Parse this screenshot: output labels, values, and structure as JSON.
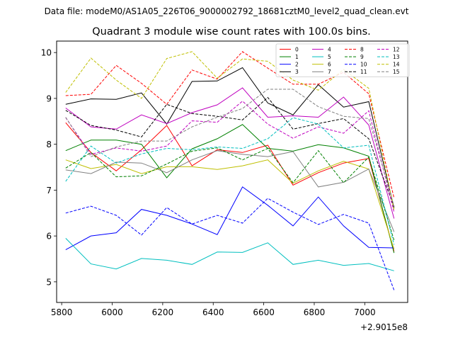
{
  "chart_data": {
    "type": "line",
    "suptitle": "Data file: modeM0/AS1A05_226T06_9000002792_18681cztM0_level2_quad_clean.evt",
    "title": "Quadrant 3 module wise count rates with 100.0s bins.",
    "xlabel": "",
    "ylabel": "",
    "x_offset_label": "+2.9015e8",
    "x": [
      5816,
      5916,
      6016,
      6116,
      6216,
      6316,
      6416,
      6516,
      6616,
      6716,
      6816,
      6916,
      7016,
      7116
    ],
    "xlim": [
      5780,
      7170
    ],
    "ylim": [
      4.55,
      10.25
    ],
    "x_ticks": [
      5800,
      6000,
      6200,
      6400,
      6600,
      6800,
      7000
    ],
    "x_tick_labels": [
      "5800",
      "6000",
      "6200",
      "6400",
      "6600",
      "6800",
      "7000"
    ],
    "y_ticks": [
      5,
      6,
      7,
      8,
      9,
      10
    ],
    "y_tick_labels": [
      "5",
      "6",
      "7",
      "8",
      "9",
      "10"
    ],
    "grid": false,
    "legend_position": "top-right",
    "legend_columns": 4,
    "series": [
      {
        "name": "0",
        "color": "#ff0000",
        "style": "solid",
        "values": [
          8.47,
          7.82,
          7.42,
          7.88,
          8.41,
          7.53,
          7.88,
          7.82,
          7.98,
          7.11,
          7.38,
          7.59,
          7.69,
          5.66
        ]
      },
      {
        "name": "1",
        "color": "#008000",
        "style": "solid",
        "values": [
          7.86,
          8.09,
          8.09,
          8.0,
          7.27,
          7.9,
          8.12,
          8.43,
          7.91,
          7.85,
          7.99,
          7.92,
          7.74,
          5.63
        ]
      },
      {
        "name": "2",
        "color": "#0000ff",
        "style": "solid",
        "values": [
          5.7,
          6.0,
          6.07,
          6.58,
          6.45,
          6.26,
          6.03,
          7.07,
          6.67,
          6.22,
          6.85,
          6.22,
          5.75,
          5.74
        ]
      },
      {
        "name": "3",
        "color": "#000000",
        "style": "solid",
        "values": [
          8.87,
          8.99,
          8.98,
          9.12,
          8.44,
          9.37,
          9.38,
          9.67,
          8.9,
          8.64,
          9.3,
          8.81,
          8.93,
          6.61
        ]
      },
      {
        "name": "4",
        "color": "#bf00bf",
        "style": "solid",
        "values": [
          8.79,
          8.38,
          8.33,
          8.64,
          8.45,
          8.69,
          8.86,
          9.23,
          8.59,
          8.62,
          8.59,
          9.03,
          8.42,
          6.38
        ]
      },
      {
        "name": "5",
        "color": "#00bfbf",
        "style": "solid",
        "values": [
          5.95,
          5.39,
          5.28,
          5.51,
          5.47,
          5.38,
          5.65,
          5.64,
          5.85,
          5.38,
          5.47,
          5.36,
          5.4,
          5.24
        ]
      },
      {
        "name": "6",
        "color": "#bfbf00",
        "style": "solid",
        "values": [
          7.66,
          7.47,
          7.56,
          7.36,
          7.51,
          7.51,
          7.45,
          7.53,
          7.66,
          7.15,
          7.42,
          7.63,
          7.46,
          5.71
        ]
      },
      {
        "name": "7",
        "color": "#808080",
        "style": "solid",
        "values": [
          7.44,
          7.36,
          7.61,
          7.59,
          7.38,
          7.66,
          7.86,
          7.78,
          7.73,
          7.84,
          7.07,
          7.17,
          7.46,
          6.09
        ]
      },
      {
        "name": "8",
        "color": "#ff0000",
        "style": "dashed",
        "values": [
          9.06,
          9.09,
          9.72,
          9.33,
          8.87,
          9.62,
          9.42,
          10.02,
          9.66,
          9.31,
          9.31,
          9.57,
          9.1,
          6.83
        ]
      },
      {
        "name": "9",
        "color": "#008000",
        "style": "dashed",
        "values": [
          7.48,
          7.82,
          7.29,
          7.31,
          7.57,
          7.85,
          7.92,
          7.66,
          7.91,
          7.16,
          7.86,
          7.16,
          7.72,
          5.91
        ]
      },
      {
        "name": "10",
        "color": "#0000ff",
        "style": "dashed",
        "values": [
          6.5,
          6.65,
          6.45,
          6.02,
          6.62,
          6.26,
          6.45,
          6.28,
          6.82,
          6.52,
          6.25,
          6.47,
          6.28,
          4.82
        ]
      },
      {
        "name": "11",
        "color": "#000000",
        "style": "dashed",
        "values": [
          8.74,
          8.41,
          8.31,
          8.16,
          8.87,
          8.67,
          8.61,
          8.53,
          9.02,
          8.33,
          8.45,
          8.56,
          8.12,
          6.63
        ]
      },
      {
        "name": "12",
        "color": "#bf00bf",
        "style": "dashed",
        "values": [
          8.58,
          7.78,
          7.92,
          7.85,
          7.96,
          8.51,
          8.48,
          8.94,
          8.44,
          8.13,
          8.38,
          8.24,
          8.73,
          6.52
        ]
      },
      {
        "name": "13",
        "color": "#00bfbf",
        "style": "dashed",
        "values": [
          7.19,
          7.96,
          7.59,
          7.79,
          7.91,
          7.88,
          7.94,
          7.91,
          8.12,
          8.58,
          8.44,
          7.92,
          7.98,
          5.81
        ]
      },
      {
        "name": "14",
        "color": "#bfbf00",
        "style": "dashed",
        "values": [
          9.13,
          9.88,
          9.4,
          9.0,
          9.87,
          10.02,
          9.44,
          9.86,
          9.81,
          9.4,
          9.18,
          9.63,
          9.22,
          6.57
        ]
      },
      {
        "name": "15",
        "color": "#808080",
        "style": "dashed",
        "values": [
          8.59,
          7.73,
          7.94,
          8.07,
          8.07,
          8.38,
          8.59,
          8.78,
          9.2,
          9.2,
          8.82,
          8.61,
          8.56,
          6.65
        ]
      }
    ]
  }
}
